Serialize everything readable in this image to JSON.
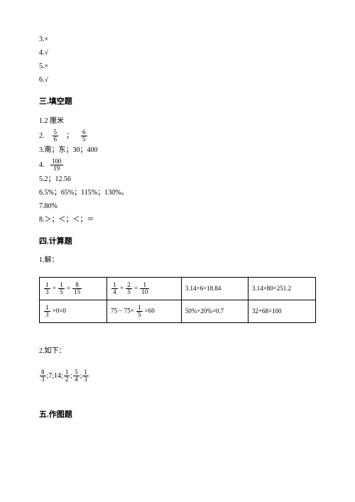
{
  "tf": {
    "i3": "3.×",
    "i4": "4.√",
    "i5": "5.×",
    "i6": "6.√"
  },
  "sec3": {
    "title": "三.填空题",
    "a1": "1.2 厘米",
    "a2_prefix": "2.",
    "a2_frac1_num": "5",
    "a2_frac1_den": "6",
    "a2_sep": "；",
    "a2_frac2_num": "6",
    "a2_frac2_den": "5",
    "a3": "3.南；东；30；400",
    "a4_prefix": "4.",
    "a4_frac_num": "100",
    "a4_frac_den": "19",
    "a5": "5.2；12.56",
    "a6": "6.5%；65%；115%；130%。",
    "a7": "7.80%",
    "a8": "8.＞；＜；＜；＝"
  },
  "sec4": {
    "title": "四.计算题",
    "p1": "1.解：",
    "table": {
      "r1c1": {
        "f1n": "1",
        "f1d": "3",
        "op1": "+",
        "f2n": "1",
        "f2d": "5",
        "op2": "=",
        "f3n": "8",
        "f3d": "15"
      },
      "r1c2": {
        "f1n": "1",
        "f1d": "4",
        "op1": "×",
        "f2n": "2",
        "f2d": "5",
        "op2": "=",
        "f3n": "1",
        "f3d": "10"
      },
      "r1c3": "3.14×6=18.84",
      "r1c4": "3.14×80=251.2",
      "r2c1": {
        "f1n": "1",
        "f1d": "3",
        "rest": " ×0=0"
      },
      "r2c2": {
        "pre": "75 − 75× ",
        "fn": "1",
        "fd": "5",
        "post": " =60"
      },
      "r2c3": "50%+20%=0.7",
      "r2c4": "32+68=100"
    },
    "p2": "2.如下：",
    "expr": {
      "f1n": "8",
      "f1d": "3",
      "s1": ";7;14;",
      "f2n": "1",
      "f2d": "2",
      "s2": ";",
      "f3n": "5",
      "f3d": "4",
      "s3": ";",
      "f4n": "1",
      "f4d": "3"
    }
  },
  "sec5": {
    "title": "五.作图题"
  }
}
